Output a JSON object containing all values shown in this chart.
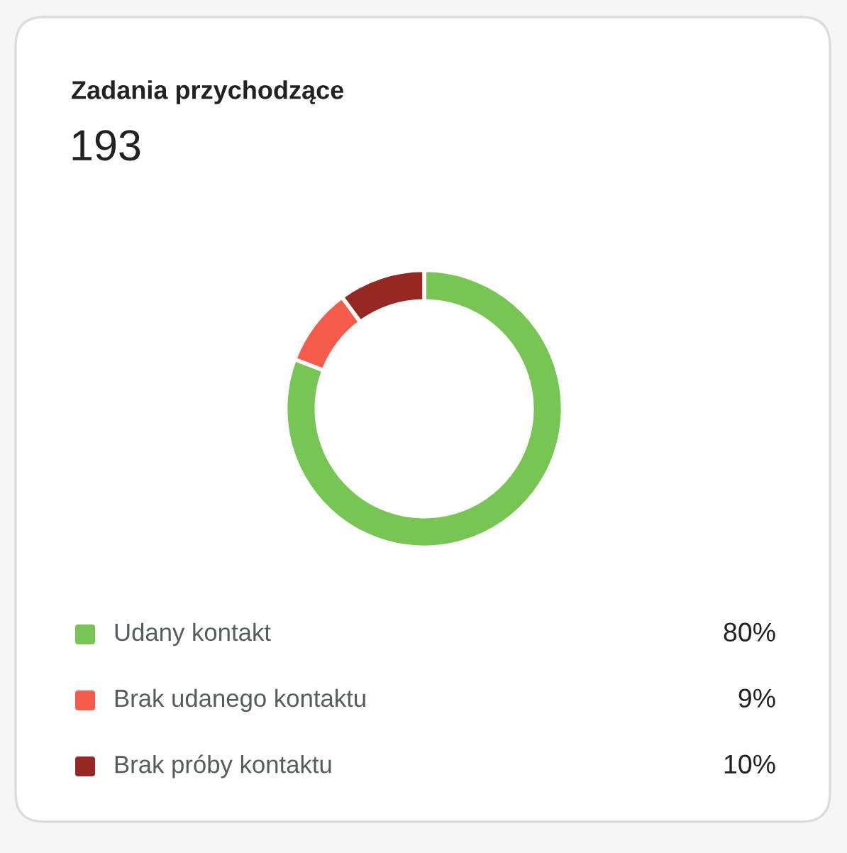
{
  "chart_data": {
    "type": "donut",
    "title": "Zadania przychodzące",
    "subtitle": "193",
    "categories": [
      "Udany kontakt",
      "Brak udanego kontaktu",
      "Brak próby kontaktu"
    ],
    "values": [
      80,
      9,
      10
    ],
    "colors": [
      "#77c553",
      "#f45b4b",
      "#952823"
    ],
    "value_labels": [
      "80%",
      "9%",
      "10%"
    ],
    "legend": "bottom"
  }
}
